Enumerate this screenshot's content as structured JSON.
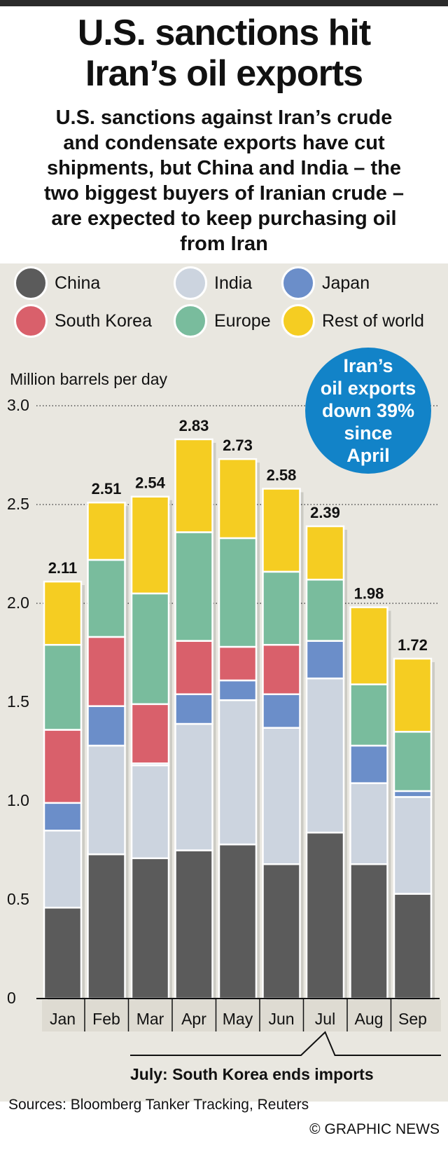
{
  "title_line1": "U.S. sanctions hit",
  "title_line2": "Iran’s oil exports",
  "subtitle_lines": [
    "U.S. sanctions against Iran’s crude",
    "and condensate exports have cut",
    "shipments, but China and India – the",
    "two biggest buyers of Iranian crude –",
    "are expected to keep purchasing oil",
    "from Iran"
  ],
  "legend": [
    {
      "label": "China",
      "color": "#5b5b5b"
    },
    {
      "label": "India",
      "color": "#ccd4df"
    },
    {
      "label": "Japan",
      "color": "#6b8ec9"
    },
    {
      "label": "South Korea",
      "color": "#d9606b"
    },
    {
      "label": "Europe",
      "color": "#79bc9d"
    },
    {
      "label": "Rest of world",
      "color": "#f5cd22"
    }
  ],
  "callout": {
    "lines": [
      "Iran’s",
      "oil exports",
      "down 39%",
      "since",
      "April"
    ],
    "color": "#1283c8"
  },
  "annotation": "July: South Korea ends imports",
  "sources": "Sources: Bloomberg Tanker Tracking, Reuters",
  "credit": "© GRAPHIC NEWS",
  "chart_data": {
    "type": "bar",
    "stacked": true,
    "ylabel": "Million barrels per day",
    "ylim": [
      0,
      3.0
    ],
    "yticks": [
      "0",
      "0.5",
      "1.0",
      "1.5",
      "2.0",
      "2.5",
      "3.0"
    ],
    "categories": [
      "Jan",
      "Feb",
      "Mar",
      "Apr",
      "May",
      "Jun",
      "Jul",
      "Aug",
      "Sep"
    ],
    "totals": [
      2.11,
      2.51,
      2.54,
      2.83,
      2.73,
      2.58,
      2.39,
      1.98,
      1.72
    ],
    "total_labels": [
      "2.11",
      "2.51",
      "2.54",
      "2.83",
      "2.73",
      "2.58",
      "2.39",
      "1.98",
      "1.72"
    ],
    "series": [
      {
        "name": "China",
        "color": "#5b5b5b",
        "values": [
          0.46,
          0.73,
          0.71,
          0.75,
          0.78,
          0.68,
          0.84,
          0.68,
          0.53
        ]
      },
      {
        "name": "India",
        "color": "#ccd4df",
        "values": [
          0.39,
          0.55,
          0.47,
          0.64,
          0.73,
          0.69,
          0.78,
          0.41,
          0.49
        ]
      },
      {
        "name": "Japan",
        "color": "#6b8ec9",
        "values": [
          0.14,
          0.2,
          0.01,
          0.15,
          0.1,
          0.17,
          0.19,
          0.19,
          0.03
        ]
      },
      {
        "name": "South Korea",
        "color": "#d9606b",
        "values": [
          0.37,
          0.35,
          0.3,
          0.27,
          0.17,
          0.25,
          0.0,
          0.0,
          0.0
        ]
      },
      {
        "name": "Europe",
        "color": "#79bc9d",
        "values": [
          0.43,
          0.39,
          0.56,
          0.55,
          0.55,
          0.37,
          0.31,
          0.31,
          0.3
        ]
      },
      {
        "name": "Rest of world",
        "color": "#f5cd22",
        "values": [
          0.32,
          0.29,
          0.49,
          0.47,
          0.4,
          0.42,
          0.27,
          0.39,
          0.37
        ]
      }
    ],
    "gridlines": [
      2.0,
      2.5,
      3.0
    ],
    "grid": "dotted at 2.0, 2.5, 3.0",
    "legend_position": "top"
  }
}
